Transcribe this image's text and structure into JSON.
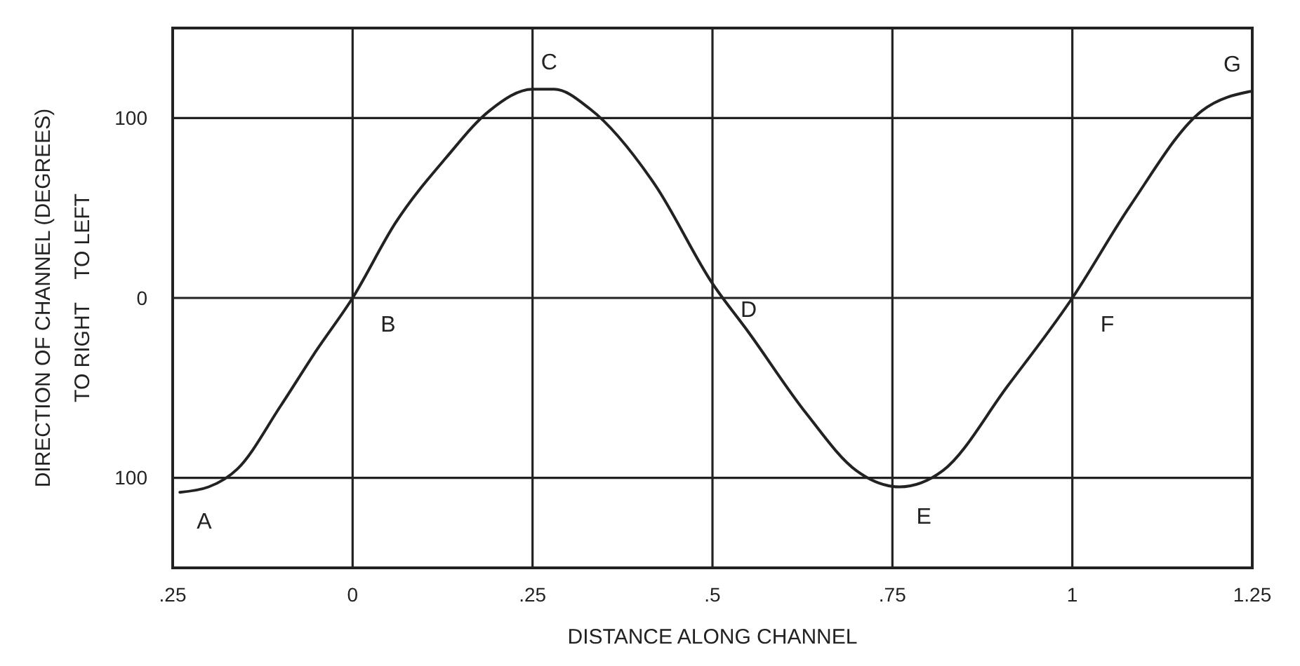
{
  "chart_data": {
    "type": "line",
    "xlabel": "DISTANCE ALONG CHANNEL",
    "ylabel": "DIRECTION OF CHANNEL (DEGREES)\nTO RIGHT    TO LEFT",
    "xlim": [
      -0.25,
      1.25
    ],
    "xticks": [
      {
        "value": -0.25,
        "label": ".25"
      },
      0,
      {
        "value": 0.25,
        "label": ".25"
      },
      {
        "value": 0.5,
        "label": ".5"
      },
      {
        "value": 0.75,
        "label": ".75"
      },
      1,
      1.25
    ],
    "ylim": [
      -150,
      150
    ],
    "yticks": [
      {
        "value": -100,
        "label": "100"
      },
      0,
      100
    ],
    "grid": true,
    "marker": "none",
    "line_style": "solid",
    "series": [
      {
        "color": "#222222",
        "x": [
          -0.24,
          -0.2,
          -0.16,
          -0.1,
          -0.05,
          0,
          0.06,
          0.13,
          0.19,
          0.25,
          0.28,
          0.33,
          0.42,
          0.5,
          0.55,
          0.63,
          0.7,
          0.76,
          0.82,
          0.91,
          1.0,
          1.08,
          1.18,
          1.25
        ],
        "values": [
          -108,
          -105,
          -95,
          -60,
          -29,
          0,
          42,
          78,
          104,
          116,
          116,
          105,
          63,
          8,
          -19,
          -64,
          -96,
          -105,
          -96,
          -49,
          0,
          51,
          104,
          115
        ]
      }
    ],
    "annotations": [
      {
        "text": "A",
        "x": -0.24,
        "y": -108
      },
      {
        "text": "B",
        "x": 0,
        "y": 0
      },
      {
        "text": "C",
        "x": 0.25,
        "y": 116
      },
      {
        "text": "D",
        "x": 0.5,
        "y": 8
      },
      {
        "text": "E",
        "x": 0.76,
        "y": -105
      },
      {
        "text": "F",
        "x": 1.0,
        "y": 0
      },
      {
        "text": "G",
        "x": 1.25,
        "y": 115
      }
    ]
  }
}
